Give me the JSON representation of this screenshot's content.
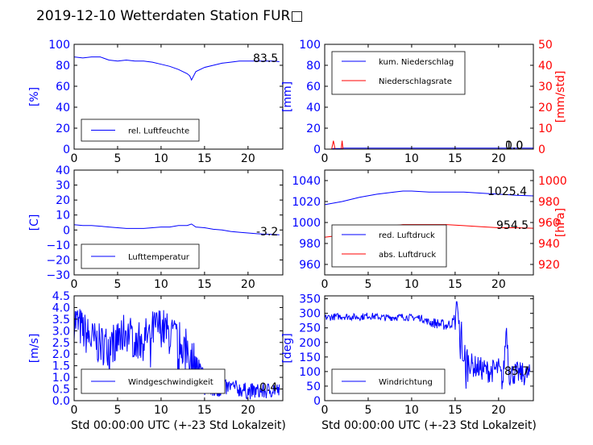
{
  "title": "2019-12-10 Wetterdaten Station FUR□",
  "colors": {
    "blue": "#0000ff",
    "red": "#ff0000",
    "lightblue": "#8080ff",
    "axis": "#000000"
  },
  "chart_data": [
    {
      "type": "line",
      "id": "humidity",
      "xlim": [
        0,
        24
      ],
      "ylim": [
        0,
        100
      ],
      "xticks": [
        "0",
        "5",
        "10",
        "15",
        "20"
      ],
      "yticks": [
        "0",
        "20",
        "40",
        "60",
        "80",
        "100"
      ],
      "ylabel": "[%]",
      "ylabel_color": "blue",
      "grid": false,
      "legend_position": "bottom-left",
      "series": [
        {
          "name": "rel. Luftfeuchte",
          "color": "blue",
          "x": [
            0,
            1,
            2,
            3,
            4,
            5,
            6,
            7,
            8,
            9,
            10,
            11,
            12,
            12.5,
            13,
            13.3,
            13.5,
            14,
            15,
            16,
            17,
            18,
            19,
            20,
            21,
            22,
            23,
            23.6
          ],
          "y": [
            88,
            87,
            88,
            88,
            85,
            84,
            85,
            84,
            84,
            83,
            81,
            79,
            76,
            74,
            72,
            70,
            66,
            74,
            78,
            80,
            82,
            83,
            84,
            84,
            84,
            84,
            84,
            83.5
          ]
        }
      ],
      "annotations": [
        {
          "text": "83.5"
        }
      ]
    },
    {
      "type": "line",
      "id": "precipitation",
      "xlim": [
        0,
        24
      ],
      "ylim": [
        0,
        100
      ],
      "y2lim": [
        0,
        50
      ],
      "xticks": [
        "0",
        "5",
        "10",
        "15",
        "20"
      ],
      "yticks": [
        "0",
        "20",
        "40",
        "60",
        "80",
        "100"
      ],
      "y2ticks": [
        "0",
        "10",
        "20",
        "30",
        "40",
        "50"
      ],
      "ylabel": "[mm]",
      "ylabel_color": "blue",
      "y2label": "[mm/std]",
      "y2label_color": "red",
      "grid": false,
      "legend_position": "top-left",
      "series": [
        {
          "name": "kum. Niederschlag",
          "color": "blue",
          "axis": "left",
          "x": [
            0,
            0.8,
            1.0,
            2.0,
            2.1,
            24
          ],
          "y": [
            0,
            0,
            0.5,
            0.5,
            1.0,
            1.0
          ]
        },
        {
          "name": "Niederschlagsrate",
          "color": "red",
          "axis": "right",
          "x": [
            0,
            0.8,
            1.0,
            1.2,
            1.9,
            2.0,
            2.1,
            24
          ],
          "y": [
            0,
            0,
            4,
            0,
            0,
            4,
            0,
            0
          ]
        }
      ],
      "annotations": [
        {
          "text": "1.0"
        },
        {
          "text": "0.0"
        }
      ]
    },
    {
      "type": "line",
      "id": "temperature",
      "xlim": [
        0,
        24
      ],
      "ylim": [
        -30,
        40
      ],
      "xticks": [
        "0",
        "5",
        "10",
        "15",
        "20"
      ],
      "yticks": [
        "−30",
        "−20",
        "−10",
        "0",
        "10",
        "20",
        "30",
        "40"
      ],
      "ylabel": "[C]",
      "ylabel_color": "blue",
      "grid": false,
      "legend_position": "bottom-left",
      "series": [
        {
          "name": "Lufttemperatur",
          "color": "blue",
          "x": [
            0,
            1,
            2,
            3,
            4,
            5,
            6,
            7,
            8,
            9,
            10,
            11,
            12,
            13,
            13.5,
            14,
            15,
            16,
            17,
            18,
            19,
            20,
            21,
            22,
            23,
            23.6
          ],
          "y": [
            3.5,
            3,
            3,
            2.5,
            2,
            1.5,
            1,
            1,
            1,
            1.5,
            2,
            2,
            3,
            3,
            4,
            2,
            1.5,
            0.5,
            0,
            -1,
            -1.5,
            -2,
            -2.5,
            -2.8,
            -3,
            -3.2
          ]
        }
      ],
      "annotations": [
        {
          "text": "-3.2"
        }
      ]
    },
    {
      "type": "line",
      "id": "pressure",
      "xlim": [
        0,
        24
      ],
      "ylim": [
        950,
        1050
      ],
      "y2lim": [
        910,
        1010
      ],
      "xticks": [
        "0",
        "5",
        "10",
        "15",
        "20"
      ],
      "yticks": [
        "960",
        "980",
        "1000",
        "1020",
        "1040"
      ],
      "y2ticks": [
        "920",
        "940",
        "960",
        "980",
        "1000"
      ],
      "ylabel": "",
      "y2label": "[hPa]",
      "y2label_color": "red",
      "grid": false,
      "legend_position": "bottom-left",
      "series": [
        {
          "name": "red. Luftdruck",
          "color": "blue",
          "axis": "left",
          "x": [
            0,
            2,
            4,
            6,
            8,
            9,
            10,
            12,
            14,
            16,
            18,
            20,
            22,
            24
          ],
          "y": [
            1017,
            1020,
            1024,
            1027,
            1029,
            1030,
            1030,
            1029,
            1029,
            1029,
            1028,
            1027,
            1026,
            1025.4
          ]
        },
        {
          "name": "abs. Luftdruck",
          "color": "red",
          "axis": "right",
          "x": [
            0,
            2,
            4,
            6,
            8,
            9,
            10,
            12,
            14,
            16,
            18,
            20,
            22,
            24
          ],
          "y": [
            946,
            948,
            951,
            954,
            957,
            958,
            958,
            958,
            958,
            957,
            956,
            955,
            955,
            954.5
          ]
        }
      ],
      "annotations": [
        {
          "text": "1025.4"
        },
        {
          "text": "954.5"
        }
      ]
    },
    {
      "type": "line",
      "id": "wind_speed",
      "xlim": [
        0,
        24
      ],
      "ylim": [
        0,
        4.5
      ],
      "xticks": [
        "0",
        "5",
        "10",
        "15",
        "20"
      ],
      "yticks": [
        "0.0",
        "0.5",
        "1.0",
        "1.5",
        "2.0",
        "2.5",
        "3.0",
        "3.5",
        "4.0",
        "4.5"
      ],
      "ylabel": "[m/s]",
      "ylabel_color": "blue",
      "grid": false,
      "legend_position": "bottom-left",
      "xlabel": "Std 00:00:00 UTC (+-23 Std Lokalzeit)",
      "series": [
        {
          "name": "Windgeschwindigkeit",
          "color": "blue",
          "noisy": true,
          "x": [
            0,
            1,
            2,
            3,
            4,
            5,
            6,
            7,
            8,
            9,
            10,
            11,
            12,
            13,
            14,
            15,
            16,
            17,
            18,
            19,
            20,
            21,
            22,
            23,
            23.6
          ],
          "y": [
            3.5,
            3.0,
            2.6,
            2.4,
            2.4,
            2.6,
            3.0,
            2.6,
            2.6,
            3.0,
            3.2,
            2.8,
            2.6,
            2.2,
            1.6,
            0.8,
            0.4,
            0.5,
            0.6,
            0.5,
            0.4,
            0.4,
            0.4,
            0.5,
            0.4
          ]
        }
      ],
      "annotations": [
        {
          "text": "0.4"
        }
      ]
    },
    {
      "type": "line",
      "id": "wind_direction",
      "xlim": [
        0,
        24
      ],
      "ylim": [
        0,
        360
      ],
      "xticks": [
        "0",
        "5",
        "10",
        "15",
        "20"
      ],
      "yticks": [
        "0",
        "50",
        "100",
        "150",
        "200",
        "250",
        "300",
        "350"
      ],
      "ylabel": "[deg]",
      "ylabel_color": "blue",
      "grid": false,
      "legend_position": "bottom-left",
      "xlabel": "Std 00:00:00 UTC (+-23 Std Lokalzeit)",
      "series": [
        {
          "name": "Windrichtung",
          "color": "blue",
          "noisy": true,
          "x": [
            0,
            1,
            2,
            3,
            4,
            5,
            6,
            7,
            8,
            9,
            10,
            11,
            12,
            13,
            14,
            14.8,
            15.2,
            15.6,
            15.9,
            16.2,
            17,
            18,
            19,
            20,
            20.5,
            20.9,
            21.2,
            22,
            23,
            23.6
          ],
          "y": [
            285,
            288,
            290,
            288,
            287,
            292,
            288,
            285,
            287,
            288,
            285,
            285,
            270,
            265,
            258,
            270,
            330,
            200,
            100,
            150,
            120,
            110,
            100,
            110,
            60,
            260,
            90,
            95,
            90,
            86
          ]
        }
      ],
      "annotations": [
        {
          "text": "85.7"
        }
      ]
    }
  ]
}
